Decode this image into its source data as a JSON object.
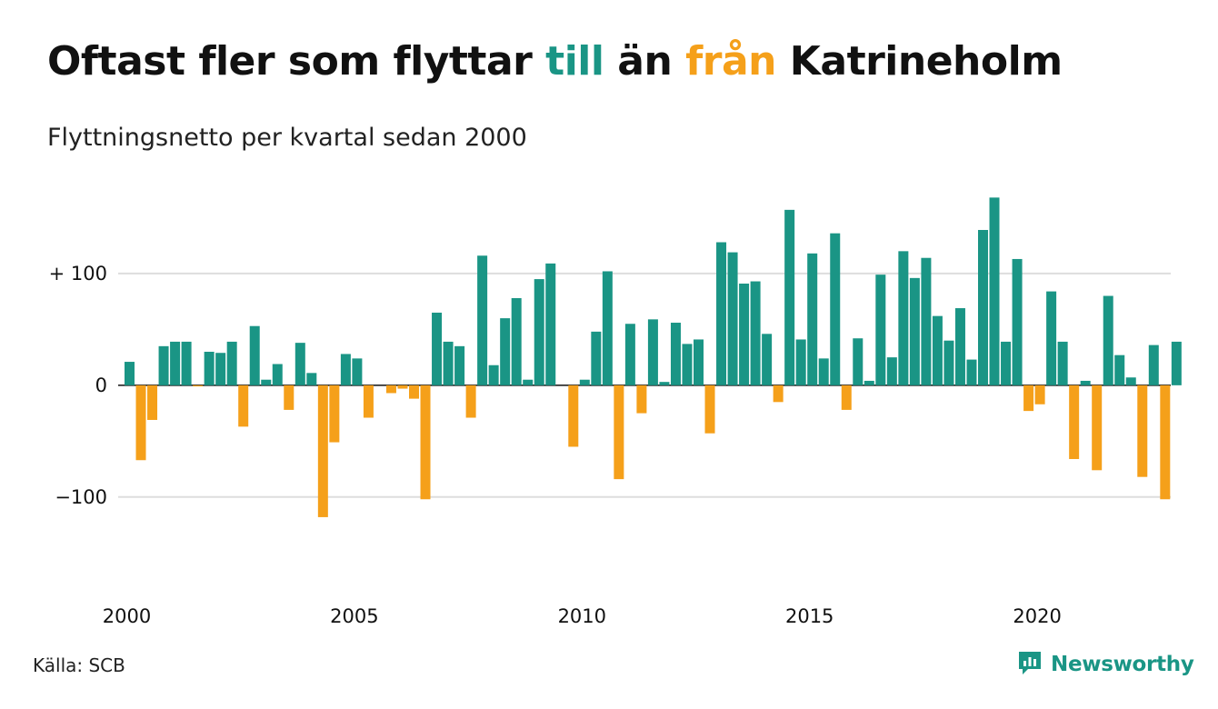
{
  "title": {
    "part1": "Oftast fler som flyttar ",
    "highlight_to": "till",
    "part2": " än ",
    "highlight_from": "från",
    "part3": " Katrineholm"
  },
  "subtitle": "Flyttningsnetto per kvartal sedan 2000",
  "source": "Källa: SCB",
  "brand": {
    "name": "Newsworthy",
    "icon": "newsworthy-logo-icon"
  },
  "colors": {
    "positive": "#1a9585",
    "negative": "#f5a01a",
    "grid": "#dddddd"
  },
  "chart_data": {
    "type": "bar",
    "x_start": "2000-Q1",
    "x_ticks": [
      {
        "label": "2000",
        "index": 0
      },
      {
        "label": "2005",
        "index": 20
      },
      {
        "label": "2010",
        "index": 40
      },
      {
        "label": "2015",
        "index": 60
      },
      {
        "label": "2020",
        "index": 80
      }
    ],
    "y_ticks": [
      {
        "label": "+ 100",
        "value": 100
      },
      {
        "label": "0",
        "value": 0
      },
      {
        "label": "−100",
        "value": -100
      }
    ],
    "ylim": [
      -175,
      200
    ],
    "grid": true,
    "values": [
      21,
      -67,
      -31,
      35,
      39,
      39,
      -1,
      30,
      29,
      39,
      -37,
      53,
      5,
      19,
      -22,
      38,
      11,
      -118,
      -51,
      28,
      24,
      -29,
      0,
      -7,
      -3,
      -12,
      -102,
      65,
      39,
      35,
      -29,
      116,
      18,
      60,
      78,
      5,
      95,
      109,
      0,
      -55,
      5,
      48,
      102,
      -84,
      55,
      -25,
      59,
      3,
      56,
      37,
      41,
      -43,
      128,
      119,
      91,
      93,
      46,
      -15,
      157,
      41,
      118,
      24,
      136,
      -22,
      42,
      4,
      99,
      25,
      120,
      96,
      114,
      62,
      40,
      69,
      23,
      139,
      168,
      39,
      113,
      -23,
      -17,
      84,
      39,
      -66,
      4,
      -76,
      80,
      27,
      7,
      -82,
      36,
      -102,
      39
    ]
  }
}
